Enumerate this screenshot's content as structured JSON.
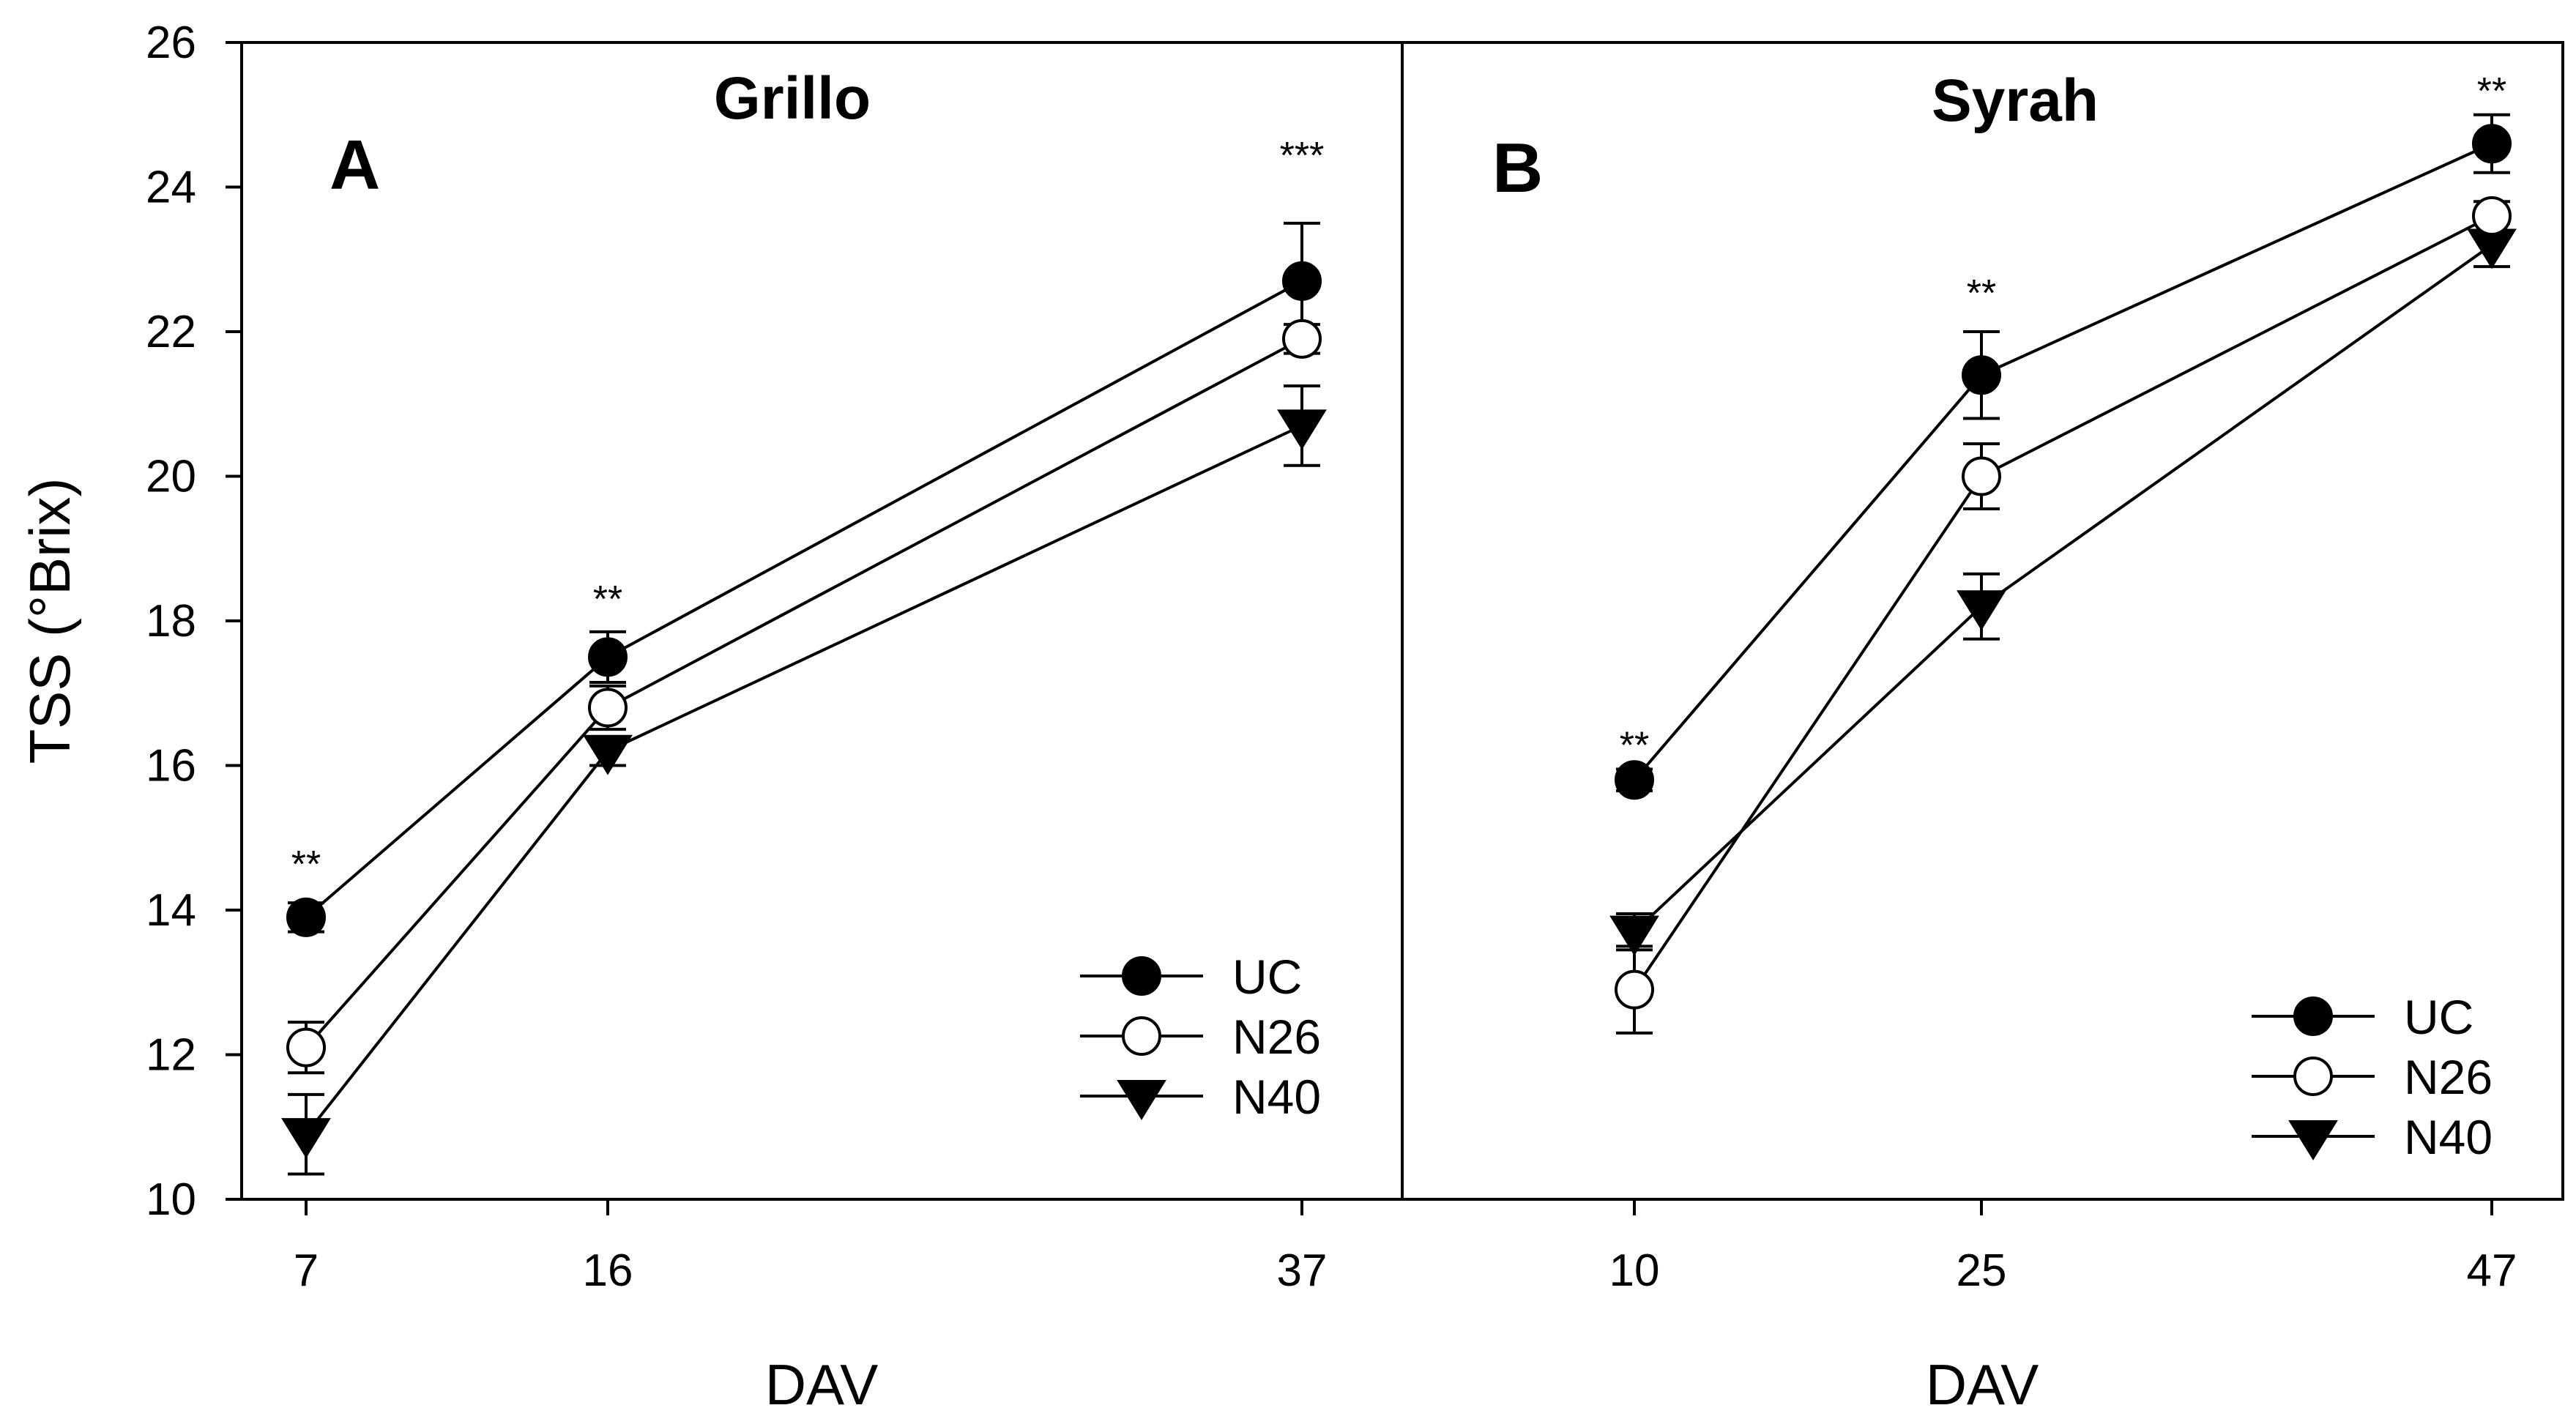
{
  "chart_data": [
    {
      "type": "line",
      "panel_letter": "A",
      "title": "Grillo",
      "xlabel": "DAV",
      "ylabel": "TSS (°Brix)",
      "ylim": [
        10,
        26
      ],
      "yticks": [
        10,
        12,
        14,
        16,
        18,
        20,
        22,
        24,
        26
      ],
      "x": [
        7,
        16,
        37
      ],
      "x_labels": [
        "7",
        "16",
        "37"
      ],
      "series": [
        {
          "name": "UC",
          "marker": "filled-circle",
          "values": [
            13.9,
            17.5,
            22.7
          ],
          "errors": [
            0.2,
            0.35,
            0.8
          ]
        },
        {
          "name": "N26",
          "marker": "open-circle",
          "values": [
            12.1,
            16.8,
            21.9
          ],
          "errors": [
            0.35,
            0.3,
            0.2
          ]
        },
        {
          "name": "N40",
          "marker": "filled-triangle-down",
          "values": [
            10.9,
            16.2,
            20.7
          ],
          "errors": [
            0.55,
            0.2,
            0.55
          ]
        }
      ],
      "significance": [
        "**",
        "**",
        "***"
      ],
      "legend": [
        "UC",
        "N26",
        "N40"
      ]
    },
    {
      "type": "line",
      "panel_letter": "B",
      "title": "Syrah",
      "xlabel": "DAV",
      "ylabel": "TSS (°Brix)",
      "ylim": [
        10,
        26
      ],
      "x": [
        10,
        25,
        47
      ],
      "x_labels": [
        "10",
        "25",
        "47"
      ],
      "series": [
        {
          "name": "UC",
          "marker": "filled-circle",
          "values": [
            15.8,
            21.4,
            24.6
          ],
          "errors": [
            0.15,
            0.6,
            0.4
          ]
        },
        {
          "name": "N26",
          "marker": "open-circle",
          "values": [
            12.9,
            20.0,
            23.6
          ],
          "errors": [
            0.6,
            0.45,
            0.2
          ]
        },
        {
          "name": "N40",
          "marker": "filled-triangle-down",
          "values": [
            13.7,
            18.2,
            23.2
          ],
          "errors": [
            0.25,
            0.45,
            0.3
          ]
        }
      ],
      "significance": [
        "**",
        "**",
        "**"
      ],
      "legend": [
        "UC",
        "N26",
        "N40"
      ]
    }
  ]
}
